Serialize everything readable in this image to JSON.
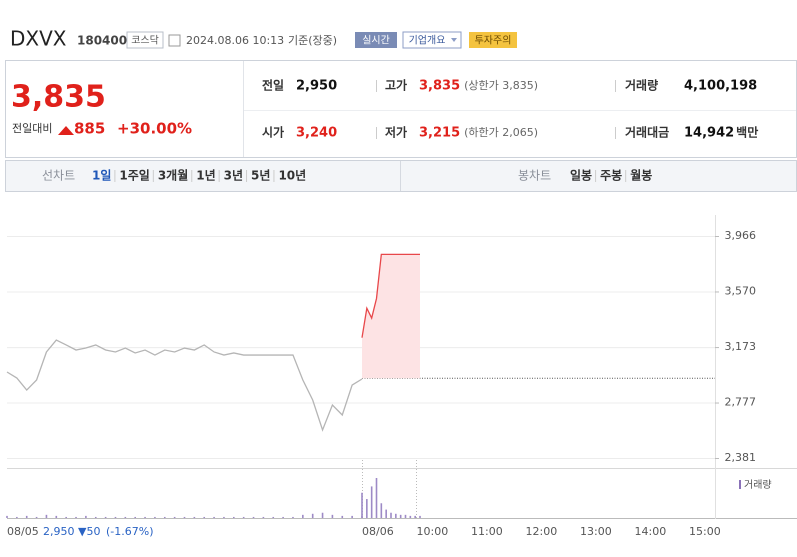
{
  "header": {
    "name": "DXVX",
    "code": "180400",
    "market": "코스닥",
    "datetime": "2024.08.06 10:13",
    "basis": "기준(장중)",
    "badges": [
      "실시간",
      "기업개요",
      "투자주의"
    ]
  },
  "quote": {
    "price": "3,835",
    "change_label": "전일대비",
    "change": "885",
    "rate": "+30.00%"
  },
  "stats": [
    {
      "label": "전일",
      "value": "2,950"
    },
    {
      "label": "고가",
      "value": "3,835",
      "note": "(상한가 3,835)"
    },
    {
      "label": "거래량",
      "value": "4,100,198"
    },
    {
      "label": "시가",
      "value": "3,240"
    },
    {
      "label": "저가",
      "value": "3,215",
      "note": "(하한가 2,065)"
    },
    {
      "label": "거래대금",
      "value": "14,942",
      "unit": "백만"
    }
  ],
  "tabs": {
    "line_label": "선차트",
    "periods": [
      "1일",
      "1주일",
      "3개월",
      "1년",
      "3년",
      "5년",
      "10년"
    ],
    "candle_label": "봉차트",
    "candles": [
      "일봉",
      "주봉",
      "월봉"
    ]
  },
  "chart": {
    "type": "line",
    "ylim": [
      2381,
      3966
    ],
    "yticks": [
      {
        "value": 3966,
        "label": "3,966"
      },
      {
        "value": 3570,
        "label": "3,570"
      },
      {
        "value": 3173,
        "label": "3,173"
      },
      {
        "value": 2777,
        "label": "2,777"
      },
      {
        "value": 2381,
        "label": "2,381"
      }
    ],
    "prev_close": 2950,
    "prev_day": {
      "label": "08/05",
      "color": "#b5b5b5",
      "values": [
        2995,
        2952,
        2866,
        2938,
        3138,
        3223,
        3188,
        3152,
        3166,
        3188,
        3152,
        3138,
        3166,
        3131,
        3152,
        3116,
        3152,
        3138,
        3166,
        3152,
        3188,
        3138,
        3116,
        3131,
        3116,
        3116,
        3116,
        3116,
        3116,
        3116,
        2938,
        2795,
        2581,
        2759,
        2688,
        2902,
        2945
      ],
      "volume": [
        2,
        1,
        2,
        1,
        3,
        2,
        1,
        1,
        2,
        1,
        1,
        1,
        1,
        1,
        1,
        1,
        1,
        1,
        1,
        1,
        1,
        1,
        1,
        1,
        1,
        1,
        1,
        1,
        1,
        1,
        3,
        4,
        5,
        3,
        2,
        2,
        2
      ]
    },
    "today": {
      "label": "08/06",
      "color": "#e8474a",
      "fill": "#fde3e4",
      "values": [
        3240,
        3450,
        3380,
        3520,
        3835,
        3835,
        3835,
        3835,
        3835,
        3835,
        3835,
        3835,
        3835
      ],
      "volume": [
        24,
        18,
        30,
        38,
        14,
        8,
        5,
        4,
        3,
        3,
        2,
        2,
        2
      ]
    },
    "times": [
      "10:00",
      "11:00",
      "12:00",
      "13:00",
      "14:00",
      "15:00"
    ],
    "volume_label": "거래량",
    "summary": {
      "close": "2,950",
      "change": "▼50",
      "rate": "(-1.67%)"
    }
  }
}
